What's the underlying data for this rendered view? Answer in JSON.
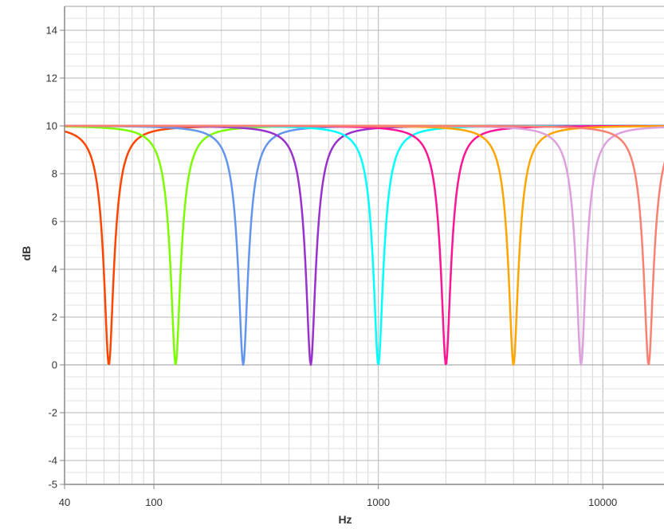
{
  "chart_data": {
    "type": "line",
    "title": "",
    "xlabel": "Hz",
    "ylabel": "dB",
    "xscale": "log",
    "xlim": [
      40,
      20000
    ],
    "ylim": [
      -5,
      15
    ],
    "grid": true,
    "legend": "none",
    "xticks": [
      {
        "value": 40,
        "label": "40"
      },
      {
        "value": 100,
        "label": "100"
      },
      {
        "value": 1000,
        "label": "1000"
      },
      {
        "value": 10000,
        "label": "10000"
      }
    ],
    "yticks": [
      {
        "value": -5,
        "label": "-5"
      },
      {
        "value": -4,
        "label": "-4"
      },
      {
        "value": -2,
        "label": "-2"
      },
      {
        "value": 0,
        "label": "0"
      },
      {
        "value": 2,
        "label": "2"
      },
      {
        "value": 4,
        "label": "4"
      },
      {
        "value": 6,
        "label": "6"
      },
      {
        "value": 8,
        "label": "8"
      },
      {
        "value": 10,
        "label": "10"
      },
      {
        "value": 12,
        "label": "12"
      },
      {
        "value": 14,
        "label": "14"
      }
    ],
    "series": [
      {
        "color": "#ff4500",
        "center_hz": 63,
        "gain_db": 10,
        "q": 4.3
      },
      {
        "color": "#7cfc00",
        "center_hz": 125,
        "gain_db": 10,
        "q": 4.3
      },
      {
        "color": "#6495ed",
        "center_hz": 250,
        "gain_db": 10,
        "q": 4.3
      },
      {
        "color": "#9932cc",
        "center_hz": 500,
        "gain_db": 10,
        "q": 4.3
      },
      {
        "color": "#00ffff",
        "center_hz": 1000,
        "gain_db": 10,
        "q": 4.3
      },
      {
        "color": "#ff1493",
        "center_hz": 2000,
        "gain_db": 10,
        "q": 4.3
      },
      {
        "color": "#ffa500",
        "center_hz": 4000,
        "gain_db": 10,
        "q": 4.3
      },
      {
        "color": "#dda0dd",
        "center_hz": 8000,
        "gain_db": 10,
        "q": 4.3
      },
      {
        "color": "#fa8072",
        "center_hz": 16000,
        "gain_db": 10,
        "q": 4.3
      }
    ]
  }
}
